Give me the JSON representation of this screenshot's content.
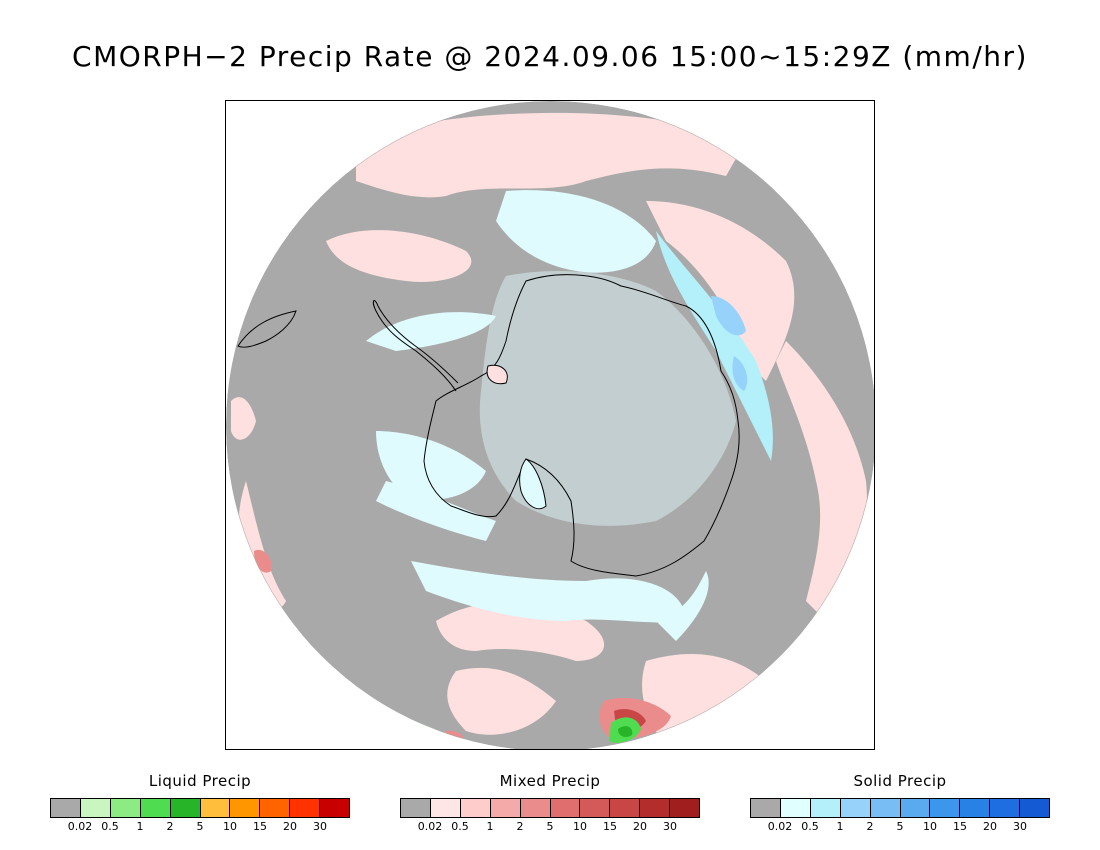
{
  "title": "CMORPH−2 Precip Rate @ 2024.09.06 15:00~15:29Z (mm/hr)",
  "map": {
    "projection": "south-polar-stereographic",
    "region": "Antarctica / Southern Ocean",
    "missing_color": "#a9a9a9"
  },
  "legends": [
    {
      "title": "Liquid Precip",
      "colors": [
        "#a9a9a9",
        "#c8f5c0",
        "#8ceb82",
        "#50dc50",
        "#28b428",
        "#ffbe3c",
        "#ff9600",
        "#ff6400",
        "#ff3200",
        "#c80000"
      ],
      "ticks": [
        "0.02",
        "0.5",
        "1",
        "2",
        "5",
        "10",
        "15",
        "20",
        "30"
      ]
    },
    {
      "title": "Mixed Precip",
      "colors": [
        "#a9a9a9",
        "#ffe6e6",
        "#ffcccc",
        "#f5aaaa",
        "#eb8c8c",
        "#e06e6e",
        "#d45a5a",
        "#c84646",
        "#b42d2d",
        "#a01e1e"
      ],
      "ticks": [
        "0.02",
        "0.5",
        "1",
        "2",
        "5",
        "10",
        "15",
        "20",
        "30"
      ]
    },
    {
      "title": "Solid Precip",
      "colors": [
        "#a9a9a9",
        "#e0ffff",
        "#b4f0fa",
        "#96d2fa",
        "#78bef5",
        "#5aaaf0",
        "#3c96eb",
        "#2882e6",
        "#1e6ee1",
        "#145ad2"
      ],
      "ticks": [
        "0.02",
        "0.5",
        "1",
        "2",
        "5",
        "10",
        "15",
        "20",
        "30"
      ]
    }
  ]
}
